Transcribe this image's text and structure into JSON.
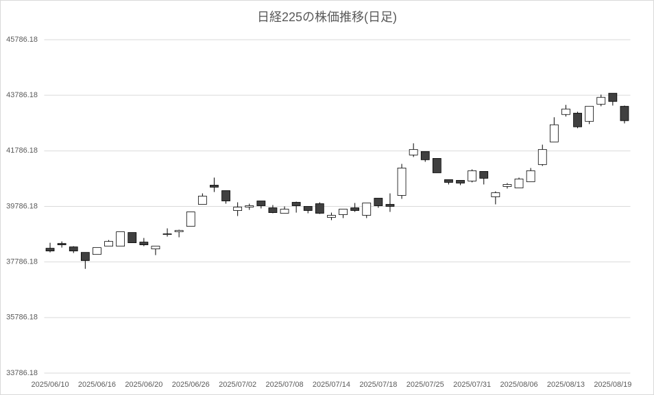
{
  "chart_data": {
    "type": "candlestick",
    "title": "日経225の株価推移(日足)",
    "categories": [
      "2025/06/10",
      null,
      null,
      null,
      "2025/06/16",
      null,
      null,
      null,
      "2025/06/20",
      null,
      null,
      null,
      "2025/06/26",
      null,
      null,
      null,
      "2025/07/02",
      null,
      null,
      null,
      "2025/07/08",
      null,
      null,
      null,
      "2025/07/14",
      null,
      null,
      null,
      "2025/07/18",
      null,
      null,
      null,
      "2025/07/25",
      null,
      null,
      null,
      "2025/07/31",
      null,
      null,
      null,
      "2025/08/06",
      null,
      null,
      null,
      "2025/08/13",
      null,
      null,
      null,
      "2025/08/19",
      null
    ],
    "open": [
      38280,
      38452,
      38329,
      38131,
      38057,
      38354,
      38354,
      38847,
      38502,
      38255,
      38773,
      38872,
      39070,
      39860,
      40551,
      40354,
      39638,
      39761,
      39983,
      39736,
      39539,
      39934,
      39786,
      39884,
      39391,
      39489,
      39736,
      39465,
      40082,
      39860,
      40181,
      41637,
      41761,
      41514,
      40749,
      40724,
      40699,
      41045,
      40131,
      40502,
      40452,
      40674,
      41292,
      42107,
      43094,
      43143,
      42847,
      43464,
      43860,
      43390
    ],
    "high": [
      38477,
      38526,
      38354,
      38131,
      38304,
      38576,
      38872,
      38847,
      38650,
      38354,
      38996,
      38946,
      39588,
      40255,
      40823,
      40354,
      39934,
      39884,
      39983,
      39835,
      39786,
      39958,
      39786,
      39934,
      39563,
      39687,
      39909,
      39909,
      40082,
      40255,
      41316,
      42057,
      41761,
      41514,
      40749,
      40724,
      41119,
      41045,
      40329,
      40625,
      40823,
      41168,
      42008,
      42995,
      43440,
      43193,
      43390,
      43810,
      43860,
      43415
    ],
    "low": [
      38131,
      38304,
      38107,
      37539,
      38057,
      38354,
      38354,
      38477,
      38354,
      38033,
      38699,
      38675,
      39070,
      39860,
      40304,
      39884,
      39440,
      39662,
      39712,
      39539,
      39539,
      39563,
      39539,
      39514,
      39292,
      39366,
      39588,
      39366,
      39736,
      39588,
      40057,
      41563,
      41390,
      40995,
      40576,
      40551,
      40650,
      40576,
      39860,
      40428,
      40452,
      40674,
      41242,
      42107,
      43020,
      42600,
      42748,
      43390,
      43415,
      42773
    ],
    "close": [
      38181,
      38403,
      38181,
      37835,
      38304,
      38526,
      38872,
      38477,
      38403,
      38354,
      38798,
      38921,
      39588,
      40156,
      40477,
      39983,
      39761,
      39810,
      39810,
      39563,
      39687,
      39810,
      39638,
      39539,
      39465,
      39687,
      39638,
      39909,
      39810,
      39786,
      41168,
      41835,
      41465,
      40995,
      40650,
      40625,
      41070,
      40798,
      40279,
      40576,
      40773,
      41070,
      41835,
      42724,
      43292,
      42650,
      43390,
      43711,
      43563,
      42872
    ],
    "up_color": "#ffffff",
    "down_color": "#404040",
    "ylim": [
      33786.18,
      45786.18
    ],
    "yticks": [
      33786.18,
      35786.18,
      37786.18,
      39786.18,
      41786.18,
      43786.18,
      45786.18
    ],
    "grid": true
  }
}
